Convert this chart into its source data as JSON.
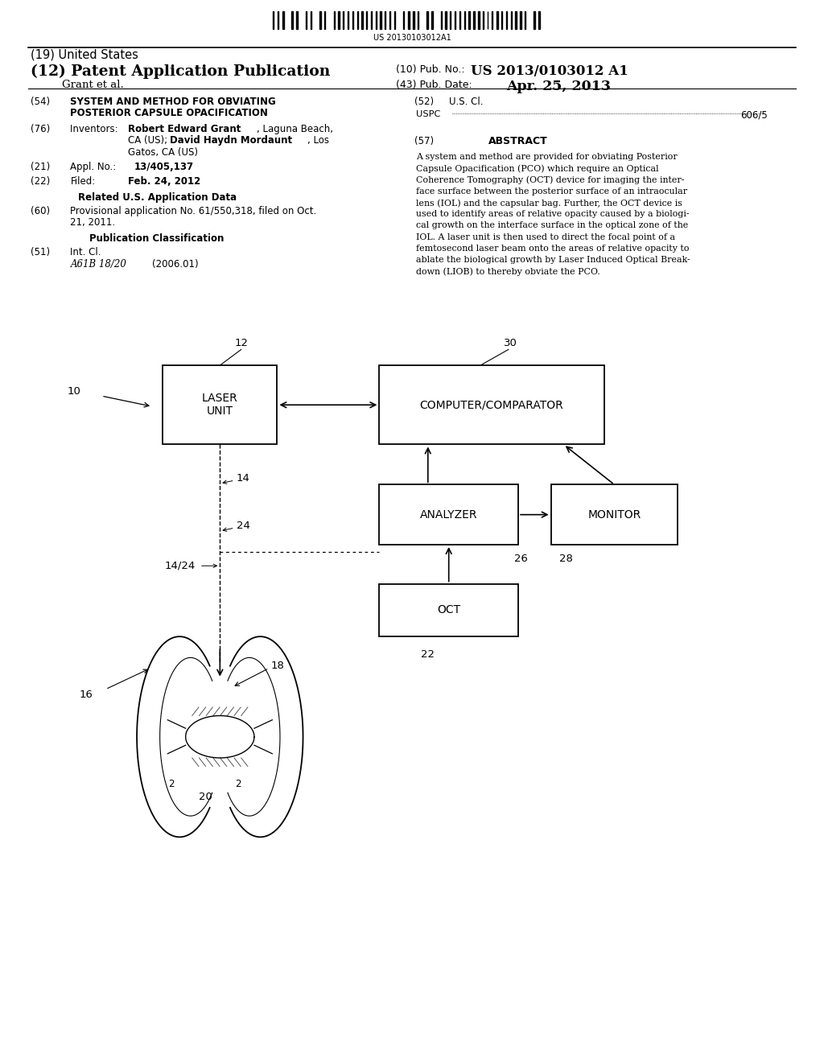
{
  "bg_color": "#ffffff",
  "barcode_text": "US 20130103012A1",
  "title_19": "(19) United States",
  "title_12": "(12) Patent Application Publication",
  "pub_no_label": "(10) Pub. No.:",
  "pub_no_val": "US 2013/0103012 A1",
  "grant": "Grant et al.",
  "pub_date_label": "(43) Pub. Date:",
  "pub_date_val": "Apr. 25, 2013",
  "field54_label": "(54)",
  "field54_text1": "SYSTEM AND METHOD FOR OBVIATING",
  "field54_text2": "POSTERIOR CAPSULE OPACIFICATION",
  "field52_label": "(52)",
  "field52_text": "U.S. Cl.",
  "field52_uspc": "USPC",
  "field52_val": "606/5",
  "field76_label": "(76)",
  "field57_label": "(57)",
  "field57_abstract": "ABSTRACT",
  "field21_label": "(21)",
  "field22_label": "(22)",
  "field22_text1": "Filed:",
  "field22_text2": "Feb. 24, 2012",
  "related_header": "Related U.S. Application Data",
  "field60_label": "(60)",
  "pub_class_header": "Publication Classification",
  "field51_label": "(51)",
  "field51_text1": "Int. Cl.",
  "field51_text2": "A61B 18/20",
  "field51_text3": "(2006.01)",
  "abstract_text": "A system and method are provided for obviating Posterior Capsule Opacification (PCO) which require an Optical Coherence Tomography (OCT) device for imaging the interface surface between the posterior surface of an intraocular lens (IOL) and the capsular bag. Further, the OCT device is used to identify areas of relative opacity caused by a biological growth on the interface surface in the optical zone of the IOL. A laser unit is then used to direct the focal point of a femtosecond laser beam onto the areas of relative opacity to ablate the biological growth by Laser Induced Optical Breakdown (LIOB) to thereby obviate the PCO."
}
